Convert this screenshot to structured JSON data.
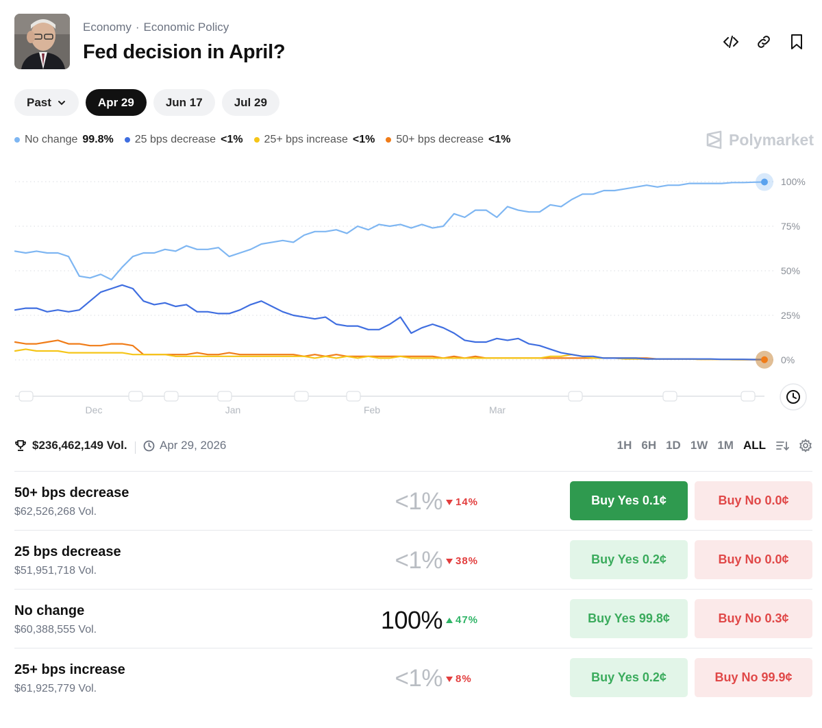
{
  "header": {
    "category": "Economy",
    "subcategory": "Economic Policy",
    "separator": "·",
    "title": "Fed decision in April?",
    "icons": [
      "embed-code-icon",
      "link-icon",
      "bookmark-icon"
    ]
  },
  "date_tabs": [
    {
      "label": "Past",
      "dropdown": true
    },
    {
      "label": "Apr 29",
      "active": true
    },
    {
      "label": "Jun 17"
    },
    {
      "label": "Jul 29"
    }
  ],
  "legend": [
    {
      "label": "No change",
      "value": "99.8%",
      "color": "#7eb6f2"
    },
    {
      "label": "25 bps decrease",
      "value": "<1%",
      "color": "#3f6ee0"
    },
    {
      "label": "25+ bps increase",
      "value": "<1%",
      "color": "#f5c518"
    },
    {
      "label": "50+ bps decrease",
      "value": "<1%",
      "color": "#f07c18"
    }
  ],
  "brand": "Polymarket",
  "chart_data": {
    "type": "line",
    "x_ticks": [
      "Dec",
      "Jan",
      "Feb",
      "Mar"
    ],
    "y_ticks": [
      "100%",
      "75%",
      "50%",
      "25%",
      "0%"
    ],
    "ylim": [
      0,
      100
    ],
    "grid": true,
    "series": [
      {
        "name": "No change",
        "color": "#7eb6f2",
        "values": [
          61,
          60,
          61,
          60,
          60,
          58,
          47,
          46,
          48,
          45,
          52,
          58,
          60,
          60,
          62,
          61,
          64,
          62,
          62,
          63,
          58,
          60,
          62,
          65,
          66,
          67,
          66,
          70,
          72,
          72,
          73,
          71,
          75,
          73,
          76,
          75,
          76,
          74,
          76,
          74,
          75,
          82,
          80,
          84,
          84,
          80,
          86,
          84,
          83,
          83,
          87,
          86,
          90,
          93,
          93,
          95,
          95,
          96,
          97,
          98,
          97,
          98,
          98,
          99,
          99,
          99,
          99,
          99.5,
          99.5,
          99.7,
          99.8
        ]
      },
      {
        "name": "25 bps decrease",
        "color": "#3f6ee0",
        "values": [
          28,
          29,
          29,
          27,
          28,
          27,
          28,
          33,
          38,
          40,
          42,
          40,
          33,
          31,
          32,
          30,
          31,
          27,
          27,
          26,
          26,
          28,
          31,
          33,
          30,
          27,
          25,
          24,
          23,
          24,
          20,
          19,
          19,
          17,
          17,
          20,
          24,
          15,
          18,
          20,
          18,
          15,
          11,
          10,
          10,
          12,
          11,
          12,
          9,
          8,
          6,
          4,
          3,
          2,
          2,
          1,
          1,
          1,
          1,
          0.5,
          0.5,
          0.5,
          0.5,
          0.5,
          0.5,
          0.5,
          0.3,
          0.3,
          0.3,
          0.2,
          0.2
        ]
      },
      {
        "name": "25+ bps increase",
        "color": "#f5c518",
        "values": [
          5,
          6,
          5,
          5,
          5,
          4,
          4,
          4,
          4,
          4,
          4,
          3,
          3,
          3,
          3,
          2,
          2,
          2,
          2,
          2,
          2,
          2,
          2,
          2,
          2,
          2,
          2,
          2,
          1,
          2,
          1,
          2,
          1,
          2,
          1,
          1,
          2,
          1,
          1,
          1,
          1,
          1,
          1,
          1,
          1,
          1,
          1,
          1,
          1,
          1,
          2,
          2,
          3,
          2,
          1,
          1,
          1,
          0.5,
          0.5,
          0.5,
          0.5,
          0.5,
          0.5,
          0.5,
          0.3,
          0.3,
          0.3,
          0.2,
          0.2,
          0.2,
          0.2
        ]
      },
      {
        "name": "50+ bps decrease",
        "color": "#f07c18",
        "values": [
          10,
          9,
          9,
          10,
          11,
          9,
          9,
          8,
          8,
          9,
          9,
          8,
          3,
          3,
          3,
          3,
          3,
          4,
          3,
          3,
          4,
          3,
          3,
          3,
          3,
          3,
          3,
          2,
          3,
          2,
          3,
          2,
          2,
          2,
          2,
          2,
          2,
          2,
          2,
          2,
          1,
          2,
          1,
          2,
          1,
          1,
          1,
          1,
          1,
          1,
          1,
          1,
          1,
          1,
          1,
          1,
          1,
          1,
          1,
          1,
          0.5,
          0.5,
          0.5,
          0.5,
          0.3,
          0.3,
          0.3,
          0.2,
          0.1,
          0.1,
          0.1
        ]
      }
    ]
  },
  "stats": {
    "volume": "$236,462,149 Vol.",
    "end_date": "Apr 29, 2026",
    "ranges": [
      "1H",
      "6H",
      "1D",
      "1W",
      "1M",
      "ALL"
    ],
    "active_range": "ALL"
  },
  "outcomes": [
    {
      "name": "50+ bps decrease",
      "volume": "$62,526,268 Vol.",
      "prob": "<1%",
      "change": "14%",
      "direction": "down",
      "buy_yes_label": "Buy Yes",
      "buy_yes_price": "0.1¢",
      "buy_no_label": "Buy No",
      "buy_no_price": "0.0¢",
      "yes_solid": true
    },
    {
      "name": "25 bps decrease",
      "volume": "$51,951,718 Vol.",
      "prob": "<1%",
      "change": "38%",
      "direction": "down",
      "buy_yes_label": "Buy Yes",
      "buy_yes_price": "0.2¢",
      "buy_no_label": "Buy No",
      "buy_no_price": "0.0¢",
      "yes_solid": false
    },
    {
      "name": "No change",
      "volume": "$60,388,555 Vol.",
      "prob": "100%",
      "change": "47%",
      "direction": "up",
      "buy_yes_label": "Buy Yes",
      "buy_yes_price": "99.8¢",
      "buy_no_label": "Buy No",
      "buy_no_price": "0.3¢",
      "yes_solid": false
    },
    {
      "name": "25+ bps increase",
      "volume": "$61,925,779 Vol.",
      "prob": "<1%",
      "change": "8%",
      "direction": "down",
      "buy_yes_label": "Buy Yes",
      "buy_yes_price": "0.2¢",
      "buy_no_label": "Buy No",
      "buy_no_price": "99.9¢",
      "yes_solid": false
    }
  ]
}
